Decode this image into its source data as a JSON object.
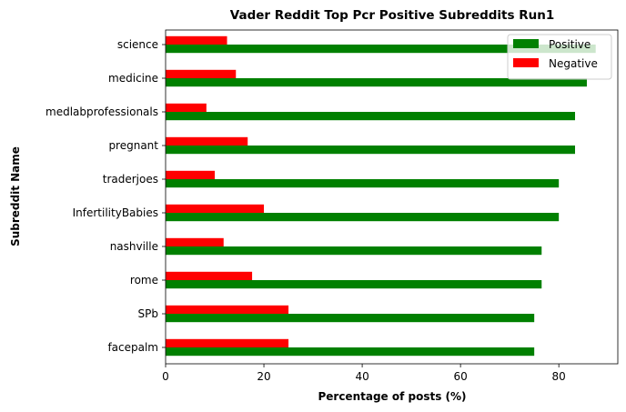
{
  "chart_data": {
    "type": "bar",
    "orientation": "horizontal",
    "title": "Vader Reddit Top Pcr Positive Subreddits Run1",
    "xlabel": "Percentage of posts (%)",
    "ylabel": "Subreddit Name",
    "xlim": [
      0,
      92
    ],
    "xticks": [
      0,
      20,
      40,
      60,
      80
    ],
    "grid": false,
    "legend_position": "top-right",
    "categories": [
      "science",
      "medicine",
      "medlabprofessionals",
      "pregnant",
      "traderjoes",
      "InfertilityBabies",
      "nashville",
      "rome",
      "SPb",
      "facepalm"
    ],
    "series": [
      {
        "name": "Positive",
        "color": "#008000",
        "values": [
          87.5,
          85.7,
          83.3,
          83.3,
          80.0,
          80.0,
          76.5,
          76.5,
          75.0,
          75.0
        ]
      },
      {
        "name": "Negative",
        "color": "#ff0000",
        "values": [
          12.5,
          14.3,
          8.3,
          16.7,
          10.0,
          20.0,
          11.8,
          17.6,
          25.0,
          25.0
        ]
      }
    ]
  }
}
